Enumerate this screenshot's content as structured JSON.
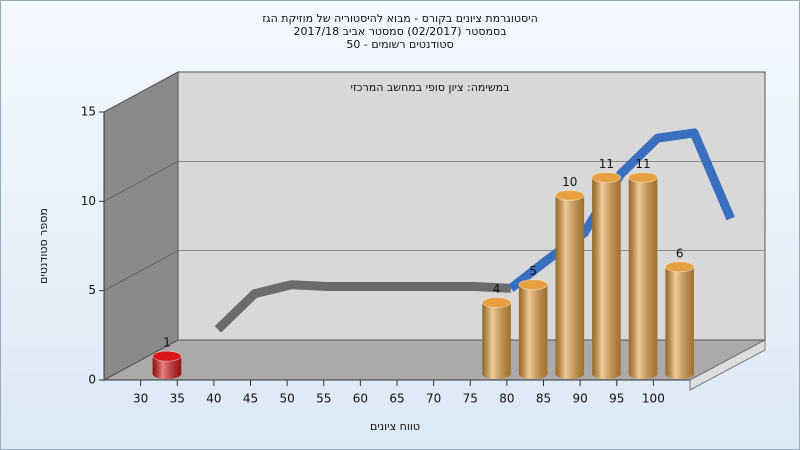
{
  "chart_data": {
    "type": "bar",
    "title": [
      "היסטוגרמת ציונים בקורס - מבוא להיסטוריה של מוזיקת הגז",
      "בסמסטר (02/2017) סמסטר אביב 2017/18",
      "סטודנטים רשומים - 50"
    ],
    "annotation": "במשימה: ציון סופי במחשב המרכזי",
    "x_label": "טווח ציונים",
    "y_label": "מספר סטודנטים",
    "x": [
      30,
      75,
      80,
      85,
      90,
      95,
      100
    ],
    "values": [
      1,
      4,
      5,
      10,
      11,
      11,
      6
    ],
    "colors": [
      "#d81818",
      "#e6a040",
      "#e6a040",
      "#e6a040",
      "#e6a040",
      "#e6a040",
      "#e6a040"
    ],
    "lines": [
      {
        "color": "#6b6b6b",
        "x": [
          35,
          40,
          45,
          50,
          55,
          60,
          65,
          70,
          75
        ],
        "values": [
          1.6,
          3.6,
          4.1,
          4,
          4,
          4,
          4,
          4,
          3.9
        ]
      },
      {
        "color": "#3a6fc0",
        "x": [
          75,
          80,
          85,
          90,
          95,
          100,
          105
        ],
        "values": [
          3.9,
          5.5,
          7,
          10.3,
          12.3,
          12.6,
          7.8
        ]
      }
    ],
    "xlim": [
      25,
      105
    ],
    "xticks": [
      30,
      35,
      40,
      45,
      50,
      55,
      60,
      65,
      70,
      75,
      80,
      85,
      90,
      95,
      100
    ],
    "ylim": [
      0,
      15
    ],
    "yticks": [
      0,
      5,
      10,
      15
    ],
    "grid": true
  }
}
